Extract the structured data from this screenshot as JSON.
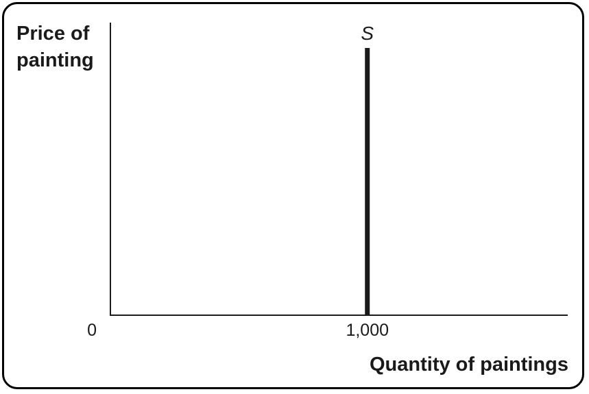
{
  "chart_data": {
    "type": "line",
    "xlabel": "Quantity of paintings",
    "ylabel": "Price of\npainting",
    "x_ticks": [
      {
        "value": 0,
        "label": "0"
      },
      {
        "value": 1000,
        "label": "1,000"
      }
    ],
    "xlim": [
      0,
      1780
    ],
    "ylim": [
      0,
      100
    ],
    "grid": false,
    "series": [
      {
        "name": "S",
        "color": "#1a1a1a",
        "points": [
          {
            "x": 1000,
            "y": 0
          },
          {
            "x": 1000,
            "y": 100
          }
        ]
      }
    ]
  }
}
